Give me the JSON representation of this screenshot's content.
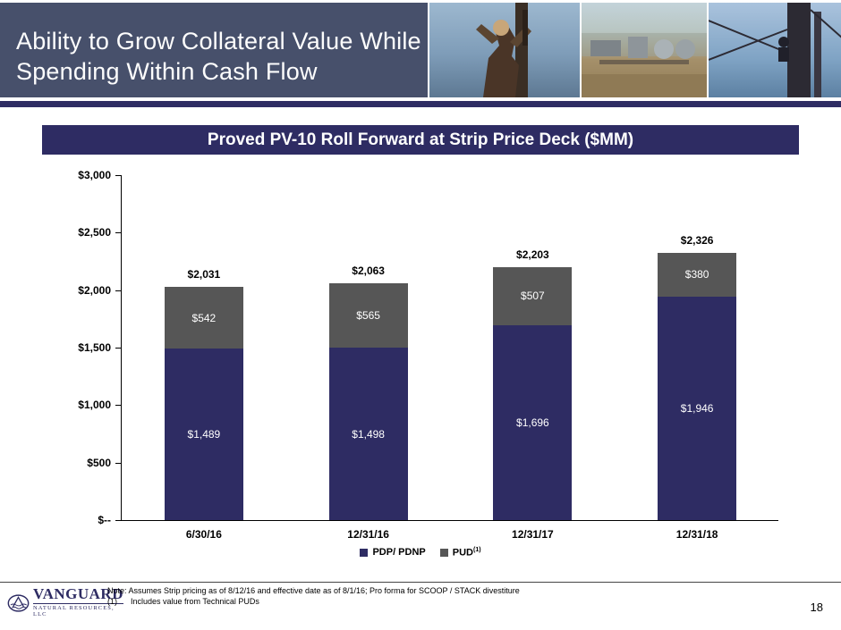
{
  "slide": {
    "title_line1": "Ability to Grow Collateral Value While",
    "title_line2": "Spending Within Cash Flow",
    "page_number": "18"
  },
  "footer": {
    "note_line1": "Note: Assumes Strip pricing as of 8/12/16 and effective date as of 8/1/16; Pro forma for SCOOP / STACK divestiture",
    "note2_ref": "(1)",
    "note2_text": "Includes value from Technical PUDs",
    "logo_name": "VANGUARD",
    "logo_sub": "NATURAL RESOURCES, LLC"
  },
  "colors": {
    "header_bg": "#47506b",
    "navy": "#2e2c63",
    "gray": "#565656"
  },
  "chart_data": {
    "type": "bar",
    "stacked": true,
    "title": "Proved PV-10 Roll Forward at Strip Price Deck ($MM)",
    "categories": [
      "6/30/16",
      "12/31/16",
      "12/31/17",
      "12/31/18"
    ],
    "series": [
      {
        "name": "PDP/ PDNP",
        "color": "#2e2c63",
        "values": [
          1489,
          1498,
          1696,
          1946
        ],
        "labels": [
          "$1,489",
          "$1,498",
          "$1,696",
          "$1,946"
        ]
      },
      {
        "name": "PUD",
        "color": "#565656",
        "values": [
          542,
          565,
          507,
          380
        ],
        "labels": [
          "$542",
          "$565",
          "$507",
          "$380"
        ]
      }
    ],
    "totals": [
      2031,
      2063,
      2203,
      2326
    ],
    "total_labels": [
      "$2,031",
      "$2,063",
      "$2,203",
      "$2,326"
    ],
    "ylim": [
      0,
      3000
    ],
    "ytick_step": 500,
    "ytick_labels": [
      "$--",
      "$500",
      "$1,000",
      "$1,500",
      "$2,000",
      "$2,500",
      "$3,000"
    ],
    "legend": [
      {
        "label": "PDP/ PDNP",
        "color": "#2e2c63"
      },
      {
        "label": "PUD",
        "sup": "(1)",
        "color": "#565656"
      }
    ],
    "legend_position": "bottom",
    "grid": false
  }
}
